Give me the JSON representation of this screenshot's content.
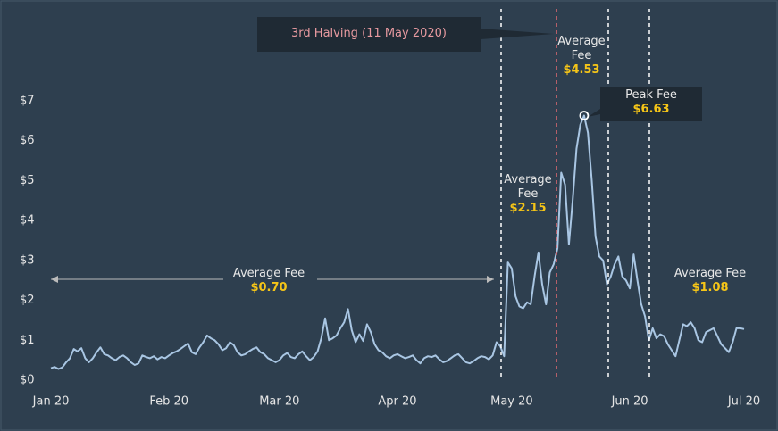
{
  "chart_data": {
    "type": "line",
    "categories": [
      "Jan 20",
      null,
      null,
      null,
      null,
      null,
      null,
      null,
      null,
      null,
      null,
      null,
      null,
      null,
      null,
      null,
      null,
      null,
      null,
      null,
      null,
      null,
      null,
      null,
      null,
      null,
      null,
      null,
      null,
      null,
      null,
      "Feb 20",
      null,
      null,
      null,
      null,
      null,
      null,
      null,
      null,
      null,
      null,
      null,
      null,
      null,
      null,
      null,
      null,
      null,
      null,
      null,
      null,
      null,
      null,
      null,
      null,
      null,
      null,
      null,
      null,
      "Mar 20",
      null,
      null,
      null,
      null,
      null,
      null,
      null,
      null,
      null,
      null,
      null,
      null,
      null,
      null,
      null,
      null,
      null,
      null,
      null,
      null,
      null,
      null,
      null,
      null,
      null,
      null,
      null,
      null,
      null,
      null,
      "Apr 20",
      null,
      null,
      null,
      null,
      null,
      null,
      null,
      null,
      null,
      null,
      null,
      null,
      null,
      null,
      null,
      null,
      null,
      null,
      null,
      null,
      null,
      null,
      null,
      null,
      null,
      null,
      null,
      null,
      null,
      "May 20",
      null,
      null,
      null,
      null,
      null,
      null,
      null,
      null,
      null,
      null,
      null,
      null,
      null,
      null,
      null,
      null,
      null,
      null,
      null,
      null,
      null,
      null,
      null,
      null,
      null,
      null,
      null,
      null,
      null,
      null,
      "Jun 20",
      null,
      null,
      null,
      null,
      null,
      null,
      null,
      null,
      null,
      null,
      null,
      null,
      null,
      null,
      null,
      null,
      null,
      null,
      null,
      null,
      null,
      null,
      null,
      null,
      null,
      null,
      null,
      null,
      null,
      "Jul 20"
    ],
    "series": [
      {
        "color": "#a9c6e3",
        "values": [
          0.3,
          0.33,
          0.28,
          0.32,
          0.45,
          0.55,
          0.78,
          0.72,
          0.8,
          0.55,
          0.45,
          0.55,
          0.7,
          0.82,
          0.65,
          0.62,
          0.55,
          0.5,
          0.58,
          0.62,
          0.55,
          0.45,
          0.38,
          0.42,
          0.62,
          0.58,
          0.55,
          0.6,
          0.52,
          0.58,
          0.55,
          0.62,
          0.68,
          0.72,
          0.78,
          0.85,
          0.92,
          0.7,
          0.65,
          0.82,
          0.95,
          1.12,
          1.05,
          1.0,
          0.9,
          0.75,
          0.8,
          0.95,
          0.88,
          0.7,
          0.62,
          0.65,
          0.72,
          0.78,
          0.82,
          0.7,
          0.65,
          0.55,
          0.5,
          0.45,
          0.5,
          0.62,
          0.68,
          0.58,
          0.55,
          0.65,
          0.72,
          0.6,
          0.5,
          0.58,
          0.72,
          1.05,
          1.55,
          1.0,
          1.05,
          1.12,
          1.3,
          1.45,
          1.78,
          1.25,
          0.95,
          1.15,
          0.98,
          1.4,
          1.2,
          0.9,
          0.75,
          0.7,
          0.6,
          0.55,
          0.62,
          0.65,
          0.6,
          0.55,
          0.58,
          0.62,
          0.5,
          0.42,
          0.55,
          0.6,
          0.58,
          0.62,
          0.52,
          0.45,
          0.48,
          0.55,
          0.62,
          0.65,
          0.55,
          0.45,
          0.42,
          0.48,
          0.55,
          0.6,
          0.58,
          0.52,
          0.62,
          0.95,
          0.85,
          0.6,
          2.95,
          2.8,
          2.1,
          1.85,
          1.8,
          1.95,
          1.9,
          2.6,
          3.2,
          2.4,
          1.9,
          2.7,
          2.9,
          3.3,
          5.2,
          4.9,
          3.4,
          4.5,
          5.8,
          6.4,
          6.63,
          6.2,
          5.0,
          3.6,
          3.1,
          3.0,
          2.4,
          2.6,
          2.9,
          3.1,
          2.6,
          2.5,
          2.3,
          3.15,
          2.5,
          1.9,
          1.6,
          1.0,
          1.3,
          1.05,
          1.15,
          1.1,
          0.9,
          0.75,
          0.6,
          1.0,
          1.4,
          1.35,
          1.45,
          1.3,
          1.0,
          0.95,
          1.2,
          1.25,
          1.3,
          1.1,
          0.9,
          0.8,
          0.7,
          0.95,
          1.3,
          1.3,
          1.28
        ]
      }
    ],
    "ylim": [
      0,
      7.3
    ],
    "yticks": [
      {
        "value": 0,
        "label": "$0"
      },
      {
        "value": 1,
        "label": "$1"
      },
      {
        "value": 2,
        "label": "$2"
      },
      {
        "value": 3,
        "label": "$3"
      },
      {
        "value": 4,
        "label": "$4"
      },
      {
        "value": 5,
        "label": "$5"
      },
      {
        "value": 6,
        "label": "$6"
      },
      {
        "value": 7,
        "label": "$7"
      }
    ],
    "annotations": [
      {
        "text": "3rd Halving (11 May 2020)"
      },
      {
        "label": "Average Fee",
        "value": "$0.70"
      },
      {
        "label": "Average Fee",
        "value": "$2.15"
      },
      {
        "label": "Average Fee",
        "value": "$4.53"
      },
      {
        "label": "Peak Fee",
        "value": "$6.63"
      },
      {
        "label": "Average Fee",
        "value": "$1.08"
      }
    ]
  }
}
